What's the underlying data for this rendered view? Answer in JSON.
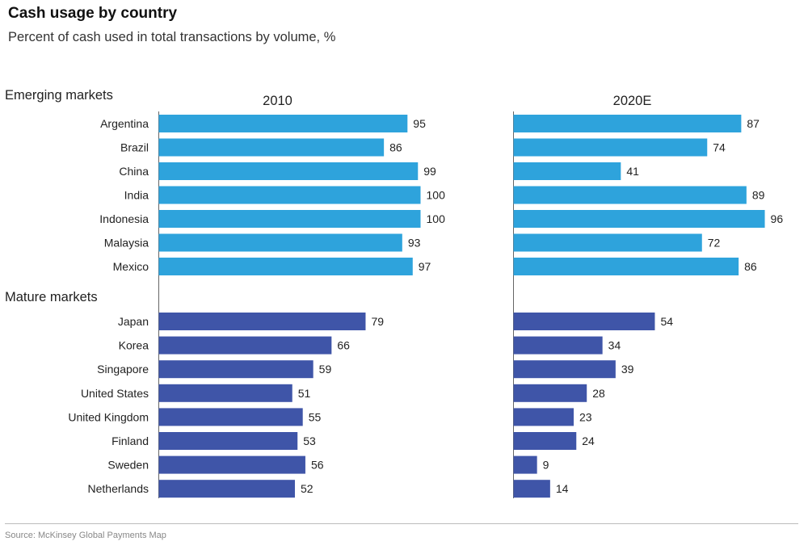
{
  "title": "Cash usage by country",
  "subtitle": "Percent of cash used in total transactions by volume, %",
  "source": "Source: McKinsey Global Payments Map",
  "colors": {
    "emerging": "#2ea3dc",
    "mature": "#3f55a8",
    "axis": "#666666"
  },
  "chart_data": {
    "type": "bar",
    "orientation": "horizontal",
    "panels": [
      "2010",
      "2020E"
    ],
    "xlim": [
      0,
      100
    ],
    "groups": [
      {
        "name": "Emerging markets",
        "color_key": "emerging",
        "categories": [
          "Argentina",
          "Brazil",
          "China",
          "India",
          "Indonesia",
          "Malaysia",
          "Mexico"
        ],
        "series": [
          {
            "name": "2010",
            "values": [
              95,
              86,
              99,
              100,
              100,
              93,
              97
            ]
          },
          {
            "name": "2020E",
            "values": [
              87,
              74,
              41,
              89,
              96,
              72,
              86
            ]
          }
        ]
      },
      {
        "name": "Mature markets",
        "color_key": "mature",
        "categories": [
          "Japan",
          "Korea",
          "Singapore",
          "United States",
          "United Kingdom",
          "Finland",
          "Sweden",
          "Netherlands"
        ],
        "series": [
          {
            "name": "2010",
            "values": [
              79,
              66,
              59,
              51,
              55,
              53,
              56,
              52
            ]
          },
          {
            "name": "2020E",
            "values": [
              54,
              34,
              39,
              28,
              23,
              24,
              9,
              14
            ]
          }
        ]
      }
    ]
  }
}
